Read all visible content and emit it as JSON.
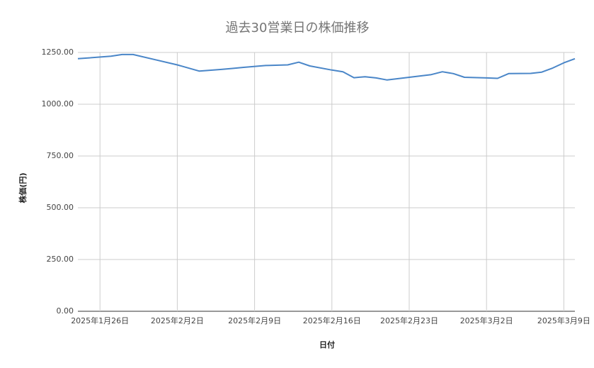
{
  "chart_data": {
    "type": "line",
    "title": "過去30営業日の株価推移",
    "x_label": "日付",
    "y_label": "株価(円)",
    "x": [
      "2025-01-24",
      "2025-01-27",
      "2025-01-28",
      "2025-01-29",
      "2025-01-31",
      "2025-02-02",
      "2025-02-04",
      "2025-02-06",
      "2025-02-07",
      "2025-02-08",
      "2025-02-10",
      "2025-02-12",
      "2025-02-13",
      "2025-02-14",
      "2025-02-16",
      "2025-02-17",
      "2025-02-18",
      "2025-02-19",
      "2025-02-20",
      "2025-02-21",
      "2025-02-23",
      "2025-02-25",
      "2025-02-26",
      "2025-02-27",
      "2025-02-28",
      "2025-03-02",
      "2025-03-03",
      "2025-03-04",
      "2025-03-06",
      "2025-03-07",
      "2025-03-08",
      "2025-03-09",
      "2025-03-10"
    ],
    "series": [
      {
        "name": "株価",
        "color": "#4a86c8",
        "values": [
          1220,
          1232,
          1240,
          1240,
          1215,
          1190,
          1160,
          1168,
          1173,
          1178,
          1187,
          1190,
          1203,
          1185,
          1165,
          1157,
          1128,
          1133,
          1127,
          1117,
          1130,
          1143,
          1157,
          1148,
          1130,
          1127,
          1125,
          1148,
          1149,
          1155,
          1175,
          1200,
          1220
        ]
      }
    ],
    "xlim": [
      "2025-01-24",
      "2025-03-10"
    ],
    "xticks": [
      {
        "value": "2025-01-26",
        "label": "2025年1月26日"
      },
      {
        "value": "2025-02-02",
        "label": "2025年2月2日"
      },
      {
        "value": "2025-02-09",
        "label": "2025年2月9日"
      },
      {
        "value": "2025-02-16",
        "label": "2025年2月16日"
      },
      {
        "value": "2025-02-23",
        "label": "2025年2月23日"
      },
      {
        "value": "2025-03-02",
        "label": "2025年3月2日"
      },
      {
        "value": "2025-03-09",
        "label": "2025年3月9日"
      }
    ],
    "ylim": [
      0,
      1250
    ],
    "yticks": [
      {
        "value": 0,
        "label": "0.00"
      },
      {
        "value": 250,
        "label": "250.00"
      },
      {
        "value": 500,
        "label": "500.00"
      },
      {
        "value": 750,
        "label": "750.00"
      },
      {
        "value": 1000,
        "label": "1000.00"
      },
      {
        "value": 1250,
        "label": "1250.00"
      }
    ],
    "grid": true
  }
}
